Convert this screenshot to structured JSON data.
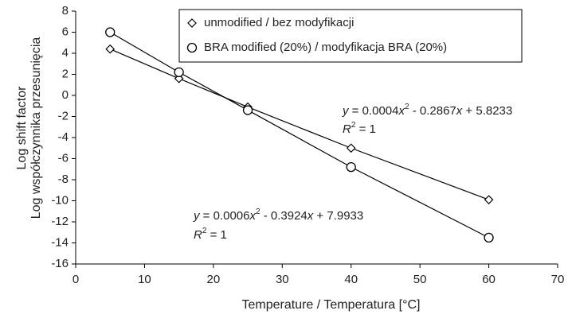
{
  "chart_data": {
    "type": "line",
    "xlabel": "Temperature / Temperatura [°C]",
    "ylabel": [
      "Log shift factor",
      "Log współczynnika przesunięcia"
    ],
    "x": [
      5,
      15,
      25,
      40,
      60
    ],
    "series": [
      {
        "name": "unmodified / bez modyfikacji",
        "color": "#000000",
        "marker": "diamond",
        "values": [
          4.4,
          1.6,
          -1.1,
          -5.0,
          -9.9
        ]
      },
      {
        "name": "BRA modified (20%) / modyfikacja BRA (20%)",
        "color": "#000000",
        "marker": "circle",
        "values": [
          6.0,
          2.2,
          -1.4,
          -6.8,
          -13.5
        ]
      }
    ],
    "xlim": [
      0,
      70
    ],
    "xticks": [
      0,
      10,
      20,
      30,
      40,
      50,
      60,
      70
    ],
    "ylim": [
      -16,
      8
    ],
    "yticks": [
      -16,
      -14,
      -12,
      -10,
      -8,
      -6,
      -4,
      -2,
      0,
      2,
      4,
      6,
      8
    ],
    "grid": false,
    "legend": "top",
    "annotations": [
      {
        "equation": [
          "y",
          " = 0.0004",
          "x",
          "2",
          " - 0.2867",
          "x",
          " + 5.8233"
        ],
        "r2": [
          "R",
          "2",
          " = 1"
        ]
      },
      {
        "equation": [
          "y",
          " = 0.0006",
          "x",
          "2",
          " - 0.3924",
          "x",
          " + 7.9933"
        ],
        "r2": [
          "R",
          "2",
          " = 1"
        ]
      }
    ]
  }
}
